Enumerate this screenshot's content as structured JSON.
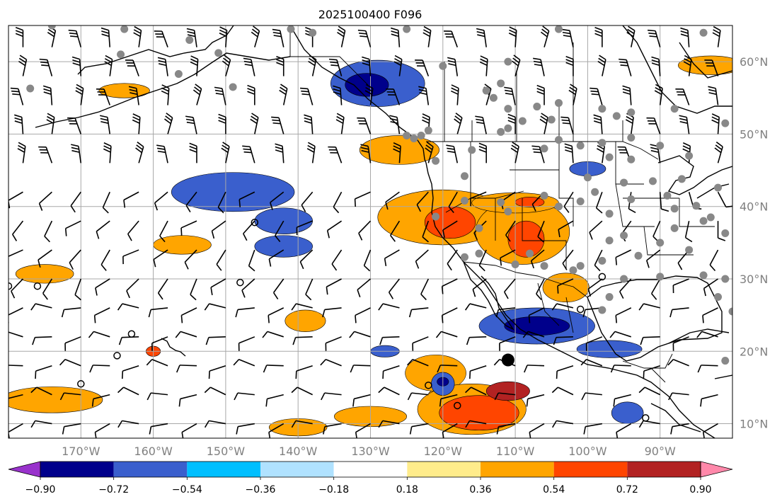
{
  "chart_data": {
    "type": "heatmap",
    "title": "2025100400 F096",
    "projection": "plate-carree",
    "lon_range": [
      -180,
      -80
    ],
    "lat_range": [
      8,
      65
    ],
    "x_tick_labels": [
      "170°W",
      "160°W",
      "150°W",
      "140°W",
      "130°W",
      "120°W",
      "110°W",
      "100°W",
      "90°W"
    ],
    "x_ticks": [
      -170,
      -160,
      -150,
      -140,
      -130,
      -120,
      -110,
      -100,
      -90
    ],
    "y_tick_labels": [
      "60°N",
      "50°N",
      "40°N",
      "30°N",
      "20°N",
      "10°N"
    ],
    "y_ticks": [
      60,
      50,
      40,
      30,
      20,
      10
    ],
    "grid": true,
    "colorbar": {
      "orientation": "horizontal",
      "extend": "both",
      "levels": [
        -0.9,
        -0.72,
        -0.54,
        -0.36,
        -0.18,
        0.18,
        0.36,
        0.54,
        0.72,
        0.9
      ],
      "tick_labels": [
        "−0.90",
        "−0.72",
        "−0.54",
        "−0.36",
        "−0.18",
        "0.18",
        "0.36",
        "0.54",
        "0.72",
        "0.90"
      ],
      "colors": [
        "#9932cc",
        "#00008b",
        "#3a5fcd",
        "#00bfff",
        "#b0e2ff",
        "#ffffff",
        "#ffec8b",
        "#ffa500",
        "#ff4500",
        "#b22222",
        "#ff88aa"
      ]
    },
    "positive_regions": [
      {
        "lon": -164,
        "lat": 56,
        "rx": 3.5,
        "ry": 1.0,
        "level": 0.36
      },
      {
        "lon": -83,
        "lat": 59.5,
        "rx": 4.5,
        "ry": 1.3,
        "level": 0.36
      },
      {
        "lon": -126,
        "lat": 47.8,
        "rx": 5.5,
        "ry": 2.0,
        "level": 0.36
      },
      {
        "lon": -120,
        "lat": 38.5,
        "rx": 9.0,
        "ry": 3.8,
        "level": 0.36
      },
      {
        "lon": -119,
        "lat": 37.8,
        "rx": 3.5,
        "ry": 2.2,
        "level": 0.54
      },
      {
        "lon": -109,
        "lat": 36.5,
        "rx": 6.5,
        "ry": 4.5,
        "level": 0.36
      },
      {
        "lon": -108.5,
        "lat": 35.5,
        "rx": 2.5,
        "ry": 2.5,
        "level": 0.54
      },
      {
        "lon": -110,
        "lat": 40.5,
        "rx": 6.0,
        "ry": 1.4,
        "level": 0.36
      },
      {
        "lon": -108,
        "lat": 40.6,
        "rx": 2.0,
        "ry": 0.7,
        "level": 0.54
      },
      {
        "lon": -103,
        "lat": 28.8,
        "rx": 3.2,
        "ry": 2.0,
        "level": 0.36
      },
      {
        "lon": -156,
        "lat": 34.7,
        "rx": 4.0,
        "ry": 1.3,
        "level": 0.36
      },
      {
        "lon": -175,
        "lat": 30.7,
        "rx": 4.0,
        "ry": 1.3,
        "level": 0.36
      },
      {
        "lon": -139,
        "lat": 24.2,
        "rx": 2.8,
        "ry": 1.5,
        "level": 0.36
      },
      {
        "lon": -174,
        "lat": 13.3,
        "rx": 7.0,
        "ry": 1.8,
        "level": 0.36
      },
      {
        "lon": -118,
        "lat": 14.0,
        "rx": 4.0,
        "ry": 1.2,
        "level": 0.36
      },
      {
        "lon": -121,
        "lat": 17.0,
        "rx": 4.2,
        "ry": 2.5,
        "level": 0.36
      },
      {
        "lon": -130,
        "lat": 11.0,
        "rx": 5.0,
        "ry": 1.4,
        "level": 0.36
      },
      {
        "lon": -116,
        "lat": 12.0,
        "rx": 7.5,
        "ry": 3.5,
        "level": 0.36
      },
      {
        "lon": -115,
        "lat": 11.5,
        "rx": 5.5,
        "ry": 2.4,
        "level": 0.54
      },
      {
        "lon": -111,
        "lat": 14.5,
        "rx": 3.0,
        "ry": 1.3,
        "level": 0.72
      },
      {
        "lon": -140,
        "lat": 9.5,
        "rx": 4.0,
        "ry": 1.2,
        "level": 0.36
      },
      {
        "lon": -160,
        "lat": 20.0,
        "rx": 1.0,
        "ry": 0.7,
        "level": 0.54
      }
    ],
    "negative_regions": [
      {
        "lon": -129,
        "lat": 57.0,
        "rx": 6.5,
        "ry": 3.2,
        "level": -0.54
      },
      {
        "lon": -130.5,
        "lat": 56.8,
        "rx": 3.0,
        "ry": 1.6,
        "level": -0.72
      },
      {
        "lon": -149,
        "lat": 42.0,
        "rx": 8.5,
        "ry": 2.7,
        "level": -0.54
      },
      {
        "lon": -142,
        "lat": 38.0,
        "rx": 4.0,
        "ry": 1.8,
        "level": -0.54
      },
      {
        "lon": -142,
        "lat": 34.5,
        "rx": 4.0,
        "ry": 1.5,
        "level": -0.54
      },
      {
        "lon": -100,
        "lat": 45.2,
        "rx": 2.5,
        "ry": 1.0,
        "level": -0.54
      },
      {
        "lon": -107,
        "lat": 23.5,
        "rx": 8.0,
        "ry": 2.5,
        "level": -0.54
      },
      {
        "lon": -107,
        "lat": 23.5,
        "rx": 4.5,
        "ry": 1.3,
        "level": -0.72
      },
      {
        "lon": -97,
        "lat": 20.3,
        "rx": 4.5,
        "ry": 1.2,
        "level": -0.54
      },
      {
        "lon": -120,
        "lat": 15.5,
        "rx": 1.6,
        "ry": 1.6,
        "level": -0.54
      },
      {
        "lon": -120,
        "lat": 15.8,
        "rx": 0.8,
        "ry": 0.6,
        "level": -0.72
      },
      {
        "lon": -128,
        "lat": 20.0,
        "rx": 2.0,
        "ry": 0.8,
        "level": -0.54
      },
      {
        "lon": -94.5,
        "lat": 11.5,
        "rx": 2.2,
        "ry": 1.5,
        "level": -0.54
      }
    ],
    "station_points": [
      [
        -174,
        65
      ],
      [
        -164,
        64.5
      ],
      [
        -155,
        63
      ],
      [
        -141,
        64.5
      ],
      [
        -138,
        64
      ],
      [
        -125,
        64.5
      ],
      [
        -104,
        64.5
      ],
      [
        -84,
        64
      ],
      [
        -177,
        56.3
      ],
      [
        -164.5,
        61
      ],
      [
        -151,
        61.2
      ],
      [
        -156.5,
        58.3
      ],
      [
        -149,
        56.5
      ],
      [
        -111,
        60
      ],
      [
        -107,
        53.8
      ],
      [
        -120,
        59.4
      ],
      [
        -112,
        57
      ],
      [
        -109,
        51.8
      ],
      [
        -114,
        56
      ],
      [
        -113,
        55
      ],
      [
        -111,
        53.5
      ],
      [
        -105,
        52
      ],
      [
        -104,
        54.3
      ],
      [
        -98,
        53.5
      ],
      [
        -96,
        52.5
      ],
      [
        -94,
        53
      ],
      [
        -88,
        53.5
      ],
      [
        -81,
        51.5
      ],
      [
        -122,
        50.5
      ],
      [
        -123,
        49.8
      ],
      [
        -125,
        49.8
      ],
      [
        -124,
        49.4
      ],
      [
        -111,
        50.8
      ],
      [
        -112,
        50.3
      ],
      [
        -104,
        49.2
      ],
      [
        -101,
        48.4
      ],
      [
        -98,
        48.8
      ],
      [
        -94,
        49.5
      ],
      [
        -90,
        48.4
      ],
      [
        -86,
        47
      ],
      [
        -116,
        47.8
      ],
      [
        -106,
        48
      ],
      [
        -97,
        46.8
      ],
      [
        -94,
        46.5
      ],
      [
        -121,
        46.3
      ],
      [
        -117,
        44.2
      ],
      [
        -100,
        44
      ],
      [
        -95,
        43.3
      ],
      [
        -91,
        43.5
      ],
      [
        -87,
        43.8
      ],
      [
        -82,
        42.6
      ],
      [
        -89,
        41.5
      ],
      [
        -94,
        41
      ],
      [
        -99,
        42
      ],
      [
        -104,
        40
      ],
      [
        -112,
        40.6
      ],
      [
        -117,
        40.8
      ],
      [
        -121,
        38.6
      ],
      [
        -115,
        37
      ],
      [
        -111,
        39.3
      ],
      [
        -106,
        41.5
      ],
      [
        -101,
        40.7
      ],
      [
        -85,
        40.1
      ],
      [
        -97,
        39
      ],
      [
        -88,
        39.7
      ],
      [
        -83,
        38.5
      ],
      [
        -77,
        40
      ],
      [
        -81,
        36.3
      ],
      [
        -88,
        37
      ],
      [
        -84,
        38
      ],
      [
        -95,
        36
      ],
      [
        -97,
        35.3
      ],
      [
        -90,
        35
      ],
      [
        -93,
        33.2
      ],
      [
        -86,
        34
      ],
      [
        -98,
        32.5
      ],
      [
        -101,
        31.8
      ],
      [
        -106,
        31.8
      ],
      [
        -110,
        32
      ],
      [
        -115,
        33.5
      ],
      [
        -117,
        33
      ],
      [
        -108,
        33.5
      ],
      [
        -102,
        31.2
      ],
      [
        -95,
        30
      ],
      [
        -90,
        30.3
      ],
      [
        -84,
        30.5
      ],
      [
        -81,
        30
      ],
      [
        -97,
        27.5
      ],
      [
        -98,
        25.7
      ],
      [
        -82,
        27.5
      ],
      [
        -80,
        25.5
      ],
      [
        -81,
        18.7
      ]
    ],
    "calm_points": [
      [
        -180,
        29
      ],
      [
        -176,
        29
      ],
      [
        -163,
        22.4
      ],
      [
        -170,
        15.5
      ],
      [
        -165,
        19.4
      ],
      [
        -146,
        37.8
      ],
      [
        -122,
        15.3
      ],
      [
        -118,
        12.5
      ],
      [
        -101,
        25.8
      ],
      [
        -98,
        30.3
      ],
      [
        -92,
        10.8
      ],
      [
        -148,
        29.5
      ]
    ],
    "tropical_low": {
      "lon": -111,
      "lat": 18.8
    }
  }
}
